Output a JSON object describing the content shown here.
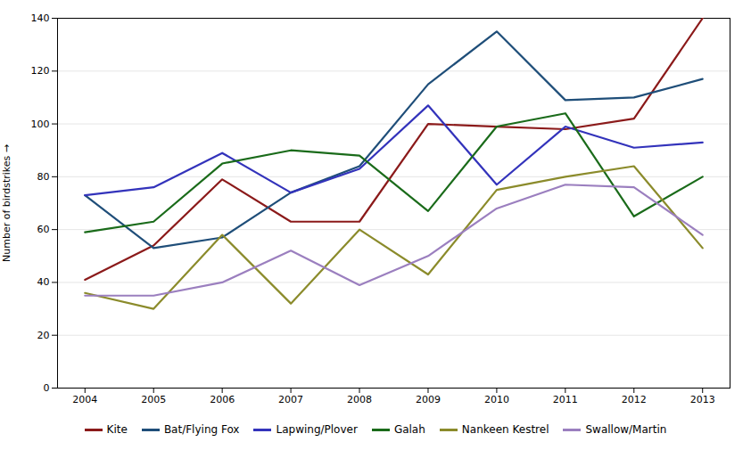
{
  "chart_data": {
    "type": "line",
    "x": [
      2004,
      2005,
      2006,
      2007,
      2008,
      2009,
      2010,
      2011,
      2012,
      2013
    ],
    "series": [
      {
        "name": "Kite",
        "color": "#8B1A1A",
        "values": [
          41,
          54,
          79,
          63,
          63,
          100,
          99,
          98,
          102,
          140
        ]
      },
      {
        "name": "Bat/Flying Fox",
        "color": "#1F4E79",
        "values": [
          73,
          53,
          57,
          74,
          84,
          115,
          135,
          109,
          110,
          117
        ]
      },
      {
        "name": "Lapwing/Plover",
        "color": "#3333BB",
        "values": [
          73,
          76,
          89,
          74,
          83,
          107,
          77,
          99,
          91,
          93
        ]
      },
      {
        "name": "Galah",
        "color": "#1A6B1A",
        "values": [
          59,
          63,
          85,
          90,
          88,
          67,
          99,
          104,
          65,
          80
        ]
      },
      {
        "name": "Nankeen Kestrel",
        "color": "#8B8B2B",
        "values": [
          36,
          30,
          58,
          32,
          60,
          43,
          75,
          80,
          84,
          53
        ]
      },
      {
        "name": "Swallow/Martin",
        "color": "#9B7FBF",
        "values": [
          35,
          35,
          40,
          52,
          39,
          50,
          68,
          77,
          76,
          58
        ]
      }
    ],
    "ylabel": "Number of birdstrikes",
    "xlim": [
      2003.6,
      2013.4
    ],
    "xticks": [
      2004,
      2005,
      2006,
      2007,
      2008,
      2009,
      2010,
      2011,
      2012,
      2013
    ],
    "ylim": [
      0,
      140
    ],
    "yticks": [
      0,
      20,
      40,
      60,
      80,
      100,
      120,
      140
    ],
    "grid": true,
    "legend": "bottom"
  }
}
